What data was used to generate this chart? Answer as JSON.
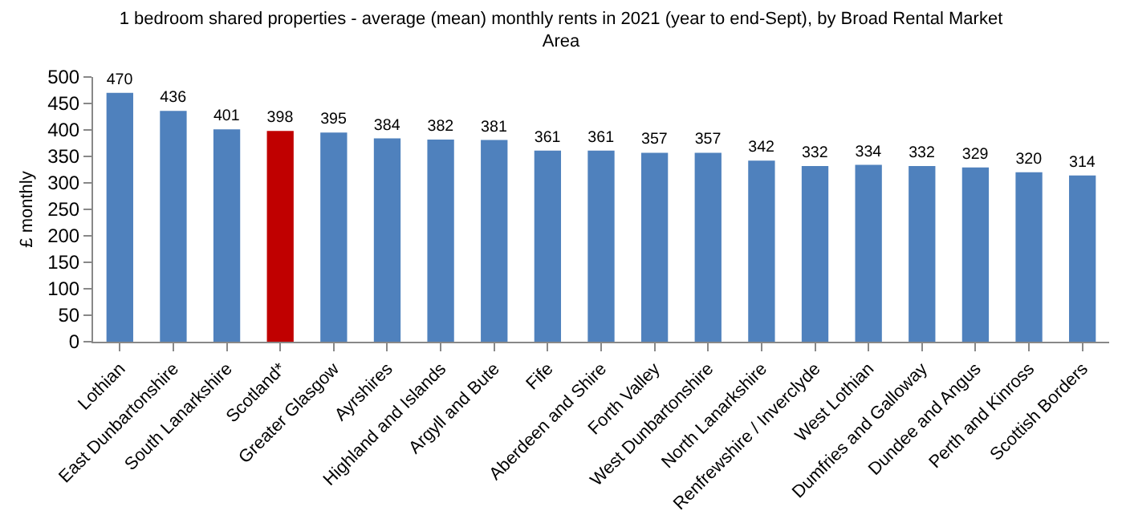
{
  "chart_data": {
    "type": "bar",
    "title": "1 bedroom shared properties - average (mean) monthly rents in 2021 (year to end-Sept), by Broad Rental Market Area",
    "ylabel": "£ monthly",
    "categories": [
      "Lothian",
      "East Dunbartonshire",
      "South Lanarkshire",
      "Scotland*",
      "Greater Glasgow",
      "Ayrshires",
      "Highland and Islands",
      "Argyll and Bute",
      "Fife",
      "Aberdeen and Shire",
      "Forth Valley",
      "West Dunbartonshire",
      "North Lanarkshire",
      "Renfrewshire / Inverclyde",
      "West Lothian",
      "Dumfries and Galloway",
      "Dundee and Angus",
      "Perth and Kinross",
      "Scottish Borders"
    ],
    "values": [
      470,
      436,
      401,
      398,
      395,
      384,
      382,
      381,
      361,
      361,
      357,
      357,
      342,
      332,
      334,
      332,
      329,
      320,
      314
    ],
    "colors": [
      "#4f81bd",
      "#4f81bd",
      "#4f81bd",
      "#c00000",
      "#4f81bd",
      "#4f81bd",
      "#4f81bd",
      "#4f81bd",
      "#4f81bd",
      "#4f81bd",
      "#4f81bd",
      "#4f81bd",
      "#4f81bd",
      "#4f81bd",
      "#4f81bd",
      "#4f81bd",
      "#4f81bd",
      "#4f81bd",
      "#4f81bd"
    ],
    "ylim": [
      0,
      500
    ],
    "yticks": [
      0,
      50,
      100,
      150,
      200,
      250,
      300,
      350,
      400,
      450,
      500
    ],
    "grid": false,
    "data_labels": true
  }
}
